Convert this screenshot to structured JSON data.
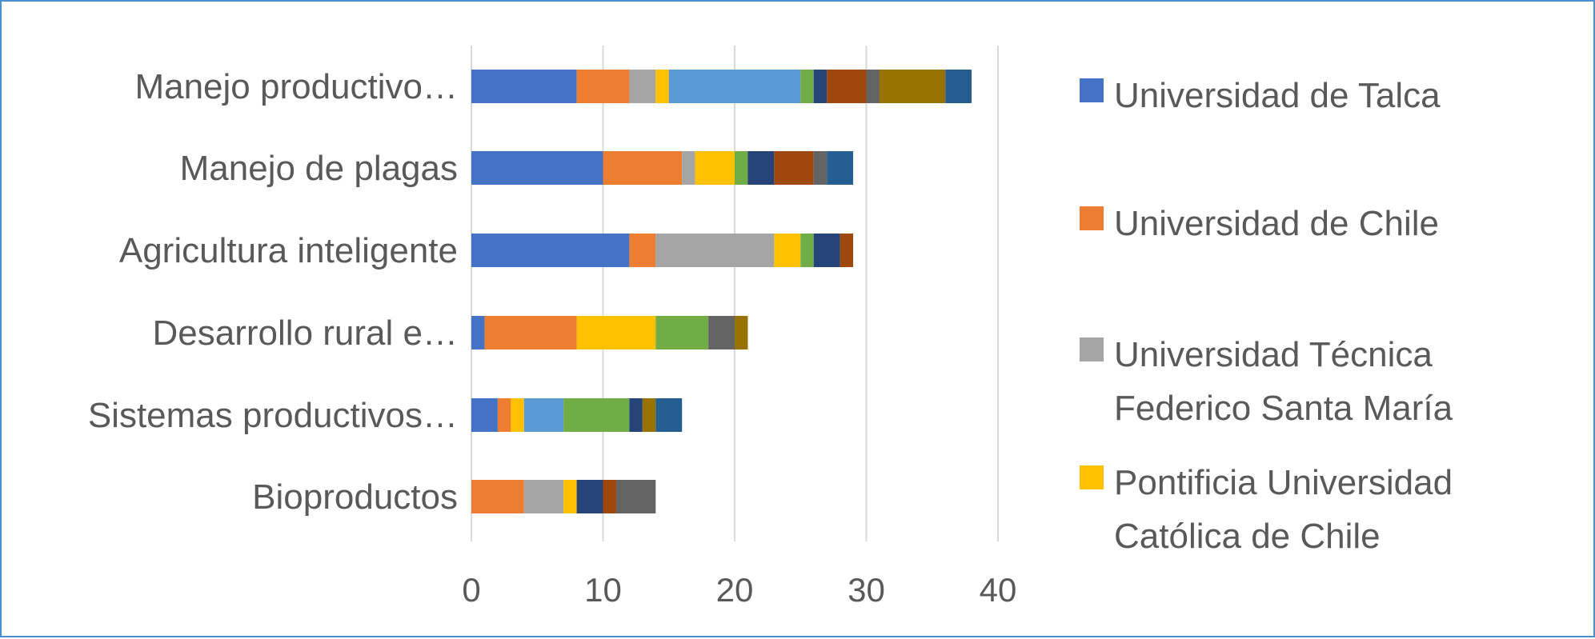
{
  "chart_data": {
    "type": "bar",
    "orientation": "horizontal",
    "stacked": true,
    "title": "",
    "xlabel": "",
    "ylabel": "",
    "xlim": [
      0,
      40
    ],
    "xticks": [
      0,
      10,
      20,
      30,
      40
    ],
    "grid": true,
    "legend_position": "right",
    "categories": [
      "Manejo productivo…",
      "Manejo de plagas",
      "Agricultura inteligente",
      "Desarrollo rural e…",
      "Sistemas productivos…",
      "Bioproductos"
    ],
    "series": [
      {
        "name": "Universidad de Talca",
        "color": "#4472c4",
        "values": [
          8,
          10,
          12,
          1,
          2,
          0
        ]
      },
      {
        "name": "Universidad de Chile",
        "color": "#ed7d31",
        "values": [
          4,
          6,
          2,
          7,
          1,
          4
        ]
      },
      {
        "name": "Universidad Técnica Federico Santa María",
        "color": "#a5a5a5",
        "values": [
          2,
          1,
          9,
          0,
          0,
          3
        ]
      },
      {
        "name": "Pontificia Universidad Católica de Chile",
        "color": "#ffc000",
        "values": [
          1,
          3,
          2,
          6,
          1,
          1
        ]
      },
      {
        "color": "#5b9bd5",
        "values": [
          10,
          0,
          0,
          0,
          3,
          0
        ]
      },
      {
        "color": "#70ad47",
        "values": [
          1,
          1,
          1,
          4,
          5,
          0
        ]
      },
      {
        "color": "#264478",
        "values": [
          1,
          2,
          2,
          0,
          1,
          2
        ]
      },
      {
        "color": "#9e480e",
        "values": [
          3,
          3,
          1,
          0,
          0,
          1
        ]
      },
      {
        "color": "#636363",
        "values": [
          1,
          1,
          0,
          2,
          0,
          3
        ]
      },
      {
        "color": "#997300",
        "values": [
          5,
          0,
          0,
          1,
          1,
          0
        ]
      },
      {
        "color": "#255e91",
        "values": [
          2,
          2,
          0,
          0,
          2,
          0
        ]
      }
    ]
  }
}
